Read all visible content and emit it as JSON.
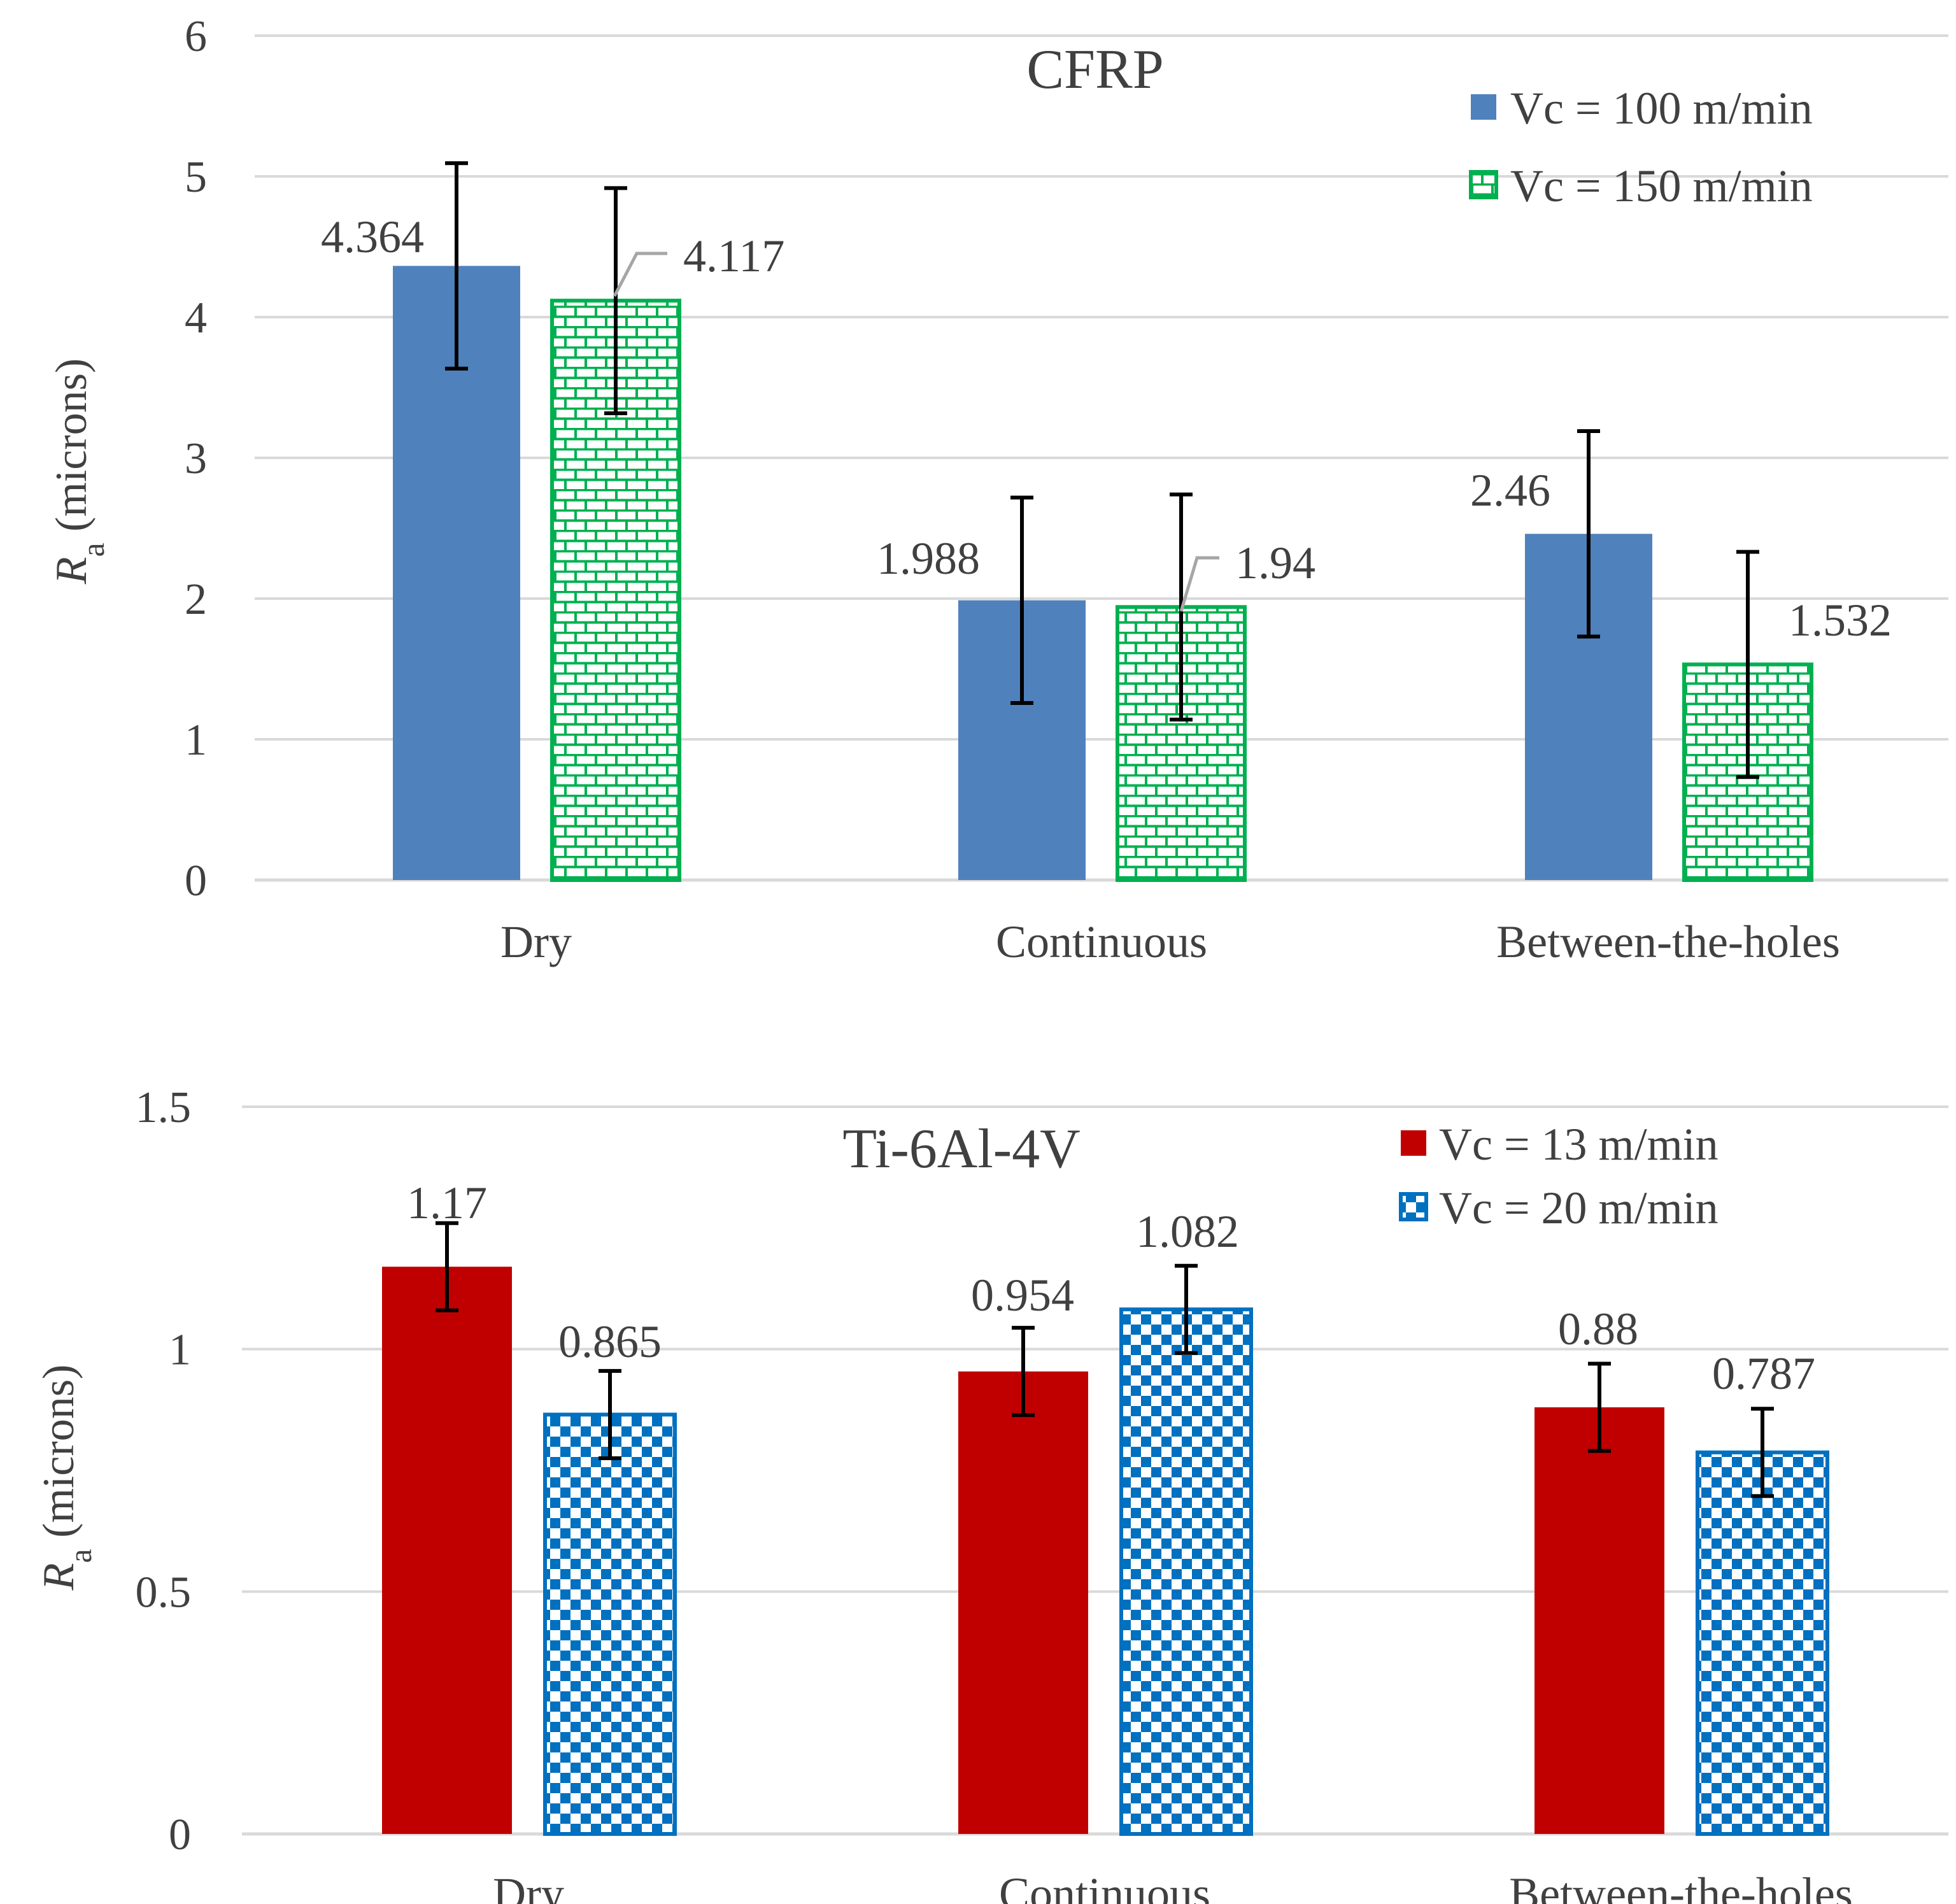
{
  "colors": {
    "grid": "#d9d9d9",
    "text": "#404040",
    "error_bar": "#000000",
    "leader": "#a6a6a6",
    "cfrp_series1": "#4f81bd",
    "cfrp_series2": "#00b050",
    "ti_series1": "#c00000",
    "ti_series2": "#0070c0"
  },
  "chart_data": [
    {
      "type": "bar",
      "title": "CFRP",
      "ylabel_main": "R",
      "ylabel_sub": "a",
      "ylabel_rest": " (microns)",
      "xlabel": "",
      "ylim": [
        0,
        6
      ],
      "yticks": [
        0,
        1,
        2,
        3,
        4,
        5,
        6
      ],
      "ytick_labels": [
        "0",
        "1",
        "2",
        "3",
        "4",
        "5",
        "6"
      ],
      "categories": [
        "Dry",
        "Continuous",
        "Between-the-holes"
      ],
      "legend_position": "top-right",
      "series": [
        {
          "name": "Vc = 100 m/min",
          "pattern": "solid",
          "values": [
            4.364,
            1.988,
            2.46
          ],
          "value_labels": [
            "4.364",
            "1.988",
            "2.46"
          ],
          "error": [
            0.73,
            0.73,
            0.73
          ]
        },
        {
          "name": "Vc = 150 m/min",
          "pattern": "brick",
          "values": [
            4.117,
            1.94,
            1.532
          ],
          "value_labels": [
            "4.117",
            "1.94",
            "1.532"
          ],
          "error": [
            0.8,
            0.8,
            0.8
          ]
        }
      ]
    },
    {
      "type": "bar",
      "title": "Ti-6Al-4V",
      "ylabel_main": "R",
      "ylabel_sub": "a",
      "ylabel_rest": " (microns)",
      "xlabel": "",
      "ylim": [
        0,
        1.5
      ],
      "yticks": [
        0,
        0.5,
        1,
        1.5
      ],
      "ytick_labels": [
        "0",
        "0.5",
        "1",
        "1.5"
      ],
      "categories": [
        "Dry",
        "Continuous",
        "Between-the-holes"
      ],
      "legend_position": "top-right",
      "series": [
        {
          "name": "Vc = 13 m/min",
          "pattern": "solid",
          "values": [
            1.17,
            0.954,
            0.88
          ],
          "value_labels": [
            "1.17",
            "0.954",
            "0.88"
          ],
          "error": [
            0.09,
            0.09,
            0.09
          ]
        },
        {
          "name": "Vc = 20 m/min",
          "pattern": "checker",
          "values": [
            0.865,
            1.082,
            0.787
          ],
          "value_labels": [
            "0.865",
            "1.082",
            "0.787"
          ],
          "error": [
            0.09,
            0.09,
            0.09
          ]
        }
      ]
    }
  ]
}
